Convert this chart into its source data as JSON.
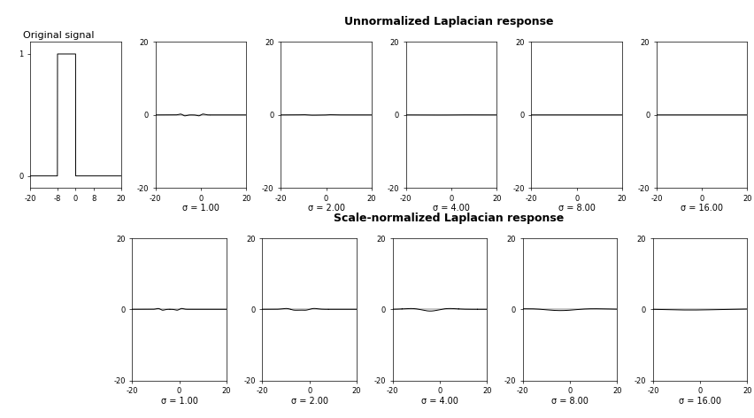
{
  "title_unnorm": "Unnormalized Laplacian response",
  "title_norm": "Scale-normalized Laplacian response",
  "title_orig": "Original signal",
  "sigmas": [
    1.0,
    2.0,
    4.0,
    8.0,
    16.0
  ],
  "xlim": [
    -20,
    20
  ],
  "ylim_laplacian": [
    -20,
    20
  ],
  "ylim_orig": [
    -0.1,
    1.1
  ],
  "background_color": "#ffffff",
  "line_color": "#000000",
  "xlabel_orig_ticks": [
    -20,
    -8,
    0,
    8,
    20
  ],
  "fig_width": 8.53,
  "fig_height": 4.72,
  "dpi": 100
}
